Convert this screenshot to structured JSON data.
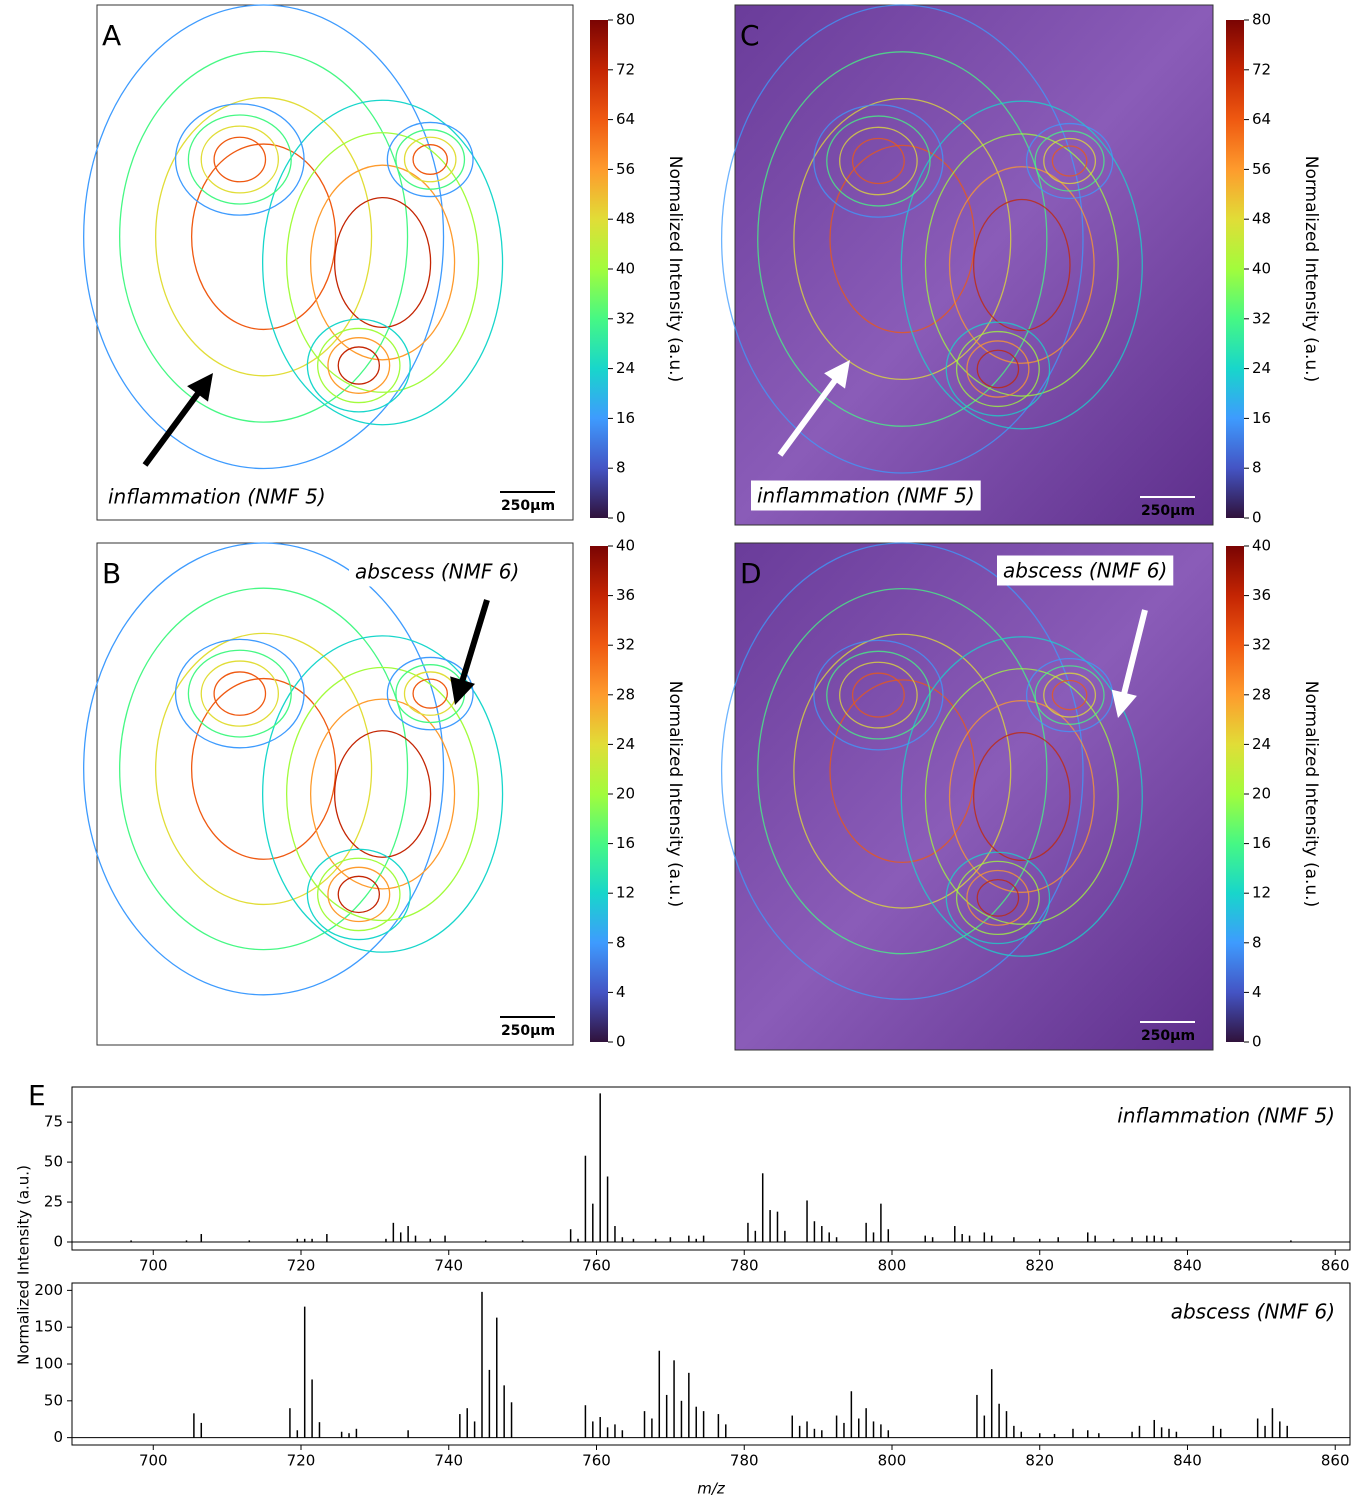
{
  "chart_data": [
    {
      "type": "contour",
      "label": "A",
      "annotation": "inflammation (NMF 5)",
      "scale_bar": "250µm",
      "overlay": false,
      "colorbar_label": "Normalized Intensity (a.u.)",
      "ylim": [
        0,
        80
      ],
      "yticks": [
        0,
        8,
        16,
        24,
        32,
        40,
        48,
        56,
        64,
        72,
        80
      ]
    },
    {
      "type": "contour",
      "label": "B",
      "annotation": "abscess (NMF 6)",
      "scale_bar": "250µm",
      "overlay": false,
      "colorbar_label": "Normalized Intensity (a.u.)",
      "ylim": [
        0,
        40
      ],
      "yticks": [
        0,
        4,
        8,
        12,
        16,
        20,
        24,
        28,
        32,
        36,
        40
      ]
    },
    {
      "type": "contour",
      "label": "C",
      "annotation": "inflammation (NMF 5)",
      "scale_bar": "250µm",
      "overlay": true,
      "colorbar_label": "Normalized Intensity (a.u.)",
      "ylim": [
        0,
        80
      ],
      "yticks": [
        0,
        8,
        16,
        24,
        32,
        40,
        48,
        56,
        64,
        72,
        80
      ]
    },
    {
      "type": "contour",
      "label": "D",
      "annotation": "abscess (NMF 6)",
      "scale_bar": "250µm",
      "overlay": true,
      "colorbar_label": "Normalized Intensity (a.u.)",
      "ylim": [
        0,
        40
      ],
      "yticks": [
        0,
        4,
        8,
        12,
        16,
        20,
        24,
        28,
        32,
        36,
        40
      ]
    },
    {
      "type": "stem",
      "label": "E",
      "title": "inflammation (NMF 5)",
      "ylabel": "Normalized Intensity (a.u.)",
      "color": "#000000",
      "xlim": [
        689,
        862
      ],
      "xticks": [
        700,
        720,
        740,
        760,
        780,
        800,
        820,
        840,
        860
      ],
      "ylim": [
        -5,
        97
      ],
      "yticks": [
        0,
        25,
        50,
        75
      ],
      "x": [
        697,
        704.5,
        706.5,
        713,
        719.5,
        720.5,
        721.5,
        723.5,
        731.5,
        732.5,
        733.5,
        734.5,
        735.5,
        737.5,
        739.5,
        745,
        750,
        756.5,
        757.5,
        758.5,
        759.5,
        760.5,
        761.5,
        762.5,
        763.5,
        765,
        768,
        770,
        772.5,
        773.5,
        774.5,
        780.5,
        781.5,
        782.5,
        783.5,
        784.5,
        785.5,
        788.5,
        789.5,
        790.5,
        791.5,
        792.5,
        796.5,
        797.5,
        798.5,
        799.5,
        804.5,
        805.5,
        808.5,
        809.5,
        810.5,
        812.5,
        813.5,
        816.5,
        820,
        822.5,
        826.5,
        827.5,
        830,
        832.5,
        834.5,
        835.5,
        836.5,
        838.5,
        854
      ],
      "values": [
        1,
        1,
        5,
        1,
        2,
        2,
        2,
        5,
        2,
        12,
        6,
        10,
        4,
        2,
        4,
        1,
        1,
        8,
        2,
        54,
        24,
        93,
        41,
        10,
        3,
        2,
        2,
        3,
        4,
        2,
        4,
        12,
        7,
        43,
        20,
        19,
        7,
        26,
        13,
        10,
        6,
        3,
        12,
        6,
        24,
        8,
        4,
        3,
        10,
        5,
        4,
        6,
        4,
        3,
        2,
        3,
        6,
        4,
        2,
        3,
        4,
        4,
        3,
        3,
        1
      ]
    },
    {
      "type": "stem",
      "title": "abscess (NMF 6)",
      "xlabel": "m/z",
      "color": "#000000",
      "xlim": [
        689,
        862
      ],
      "xticks": [
        700,
        720,
        740,
        760,
        780,
        800,
        820,
        840,
        860
      ],
      "ylim": [
        -10,
        210
      ],
      "yticks": [
        0,
        50,
        100,
        150,
        200
      ],
      "x": [
        705.5,
        706.5,
        718.5,
        719.5,
        720.5,
        721.5,
        722.5,
        725.5,
        726.5,
        727.5,
        734.5,
        741.5,
        742.5,
        743.5,
        744.5,
        745.5,
        746.5,
        747.5,
        748.5,
        758.5,
        759.5,
        760.5,
        761.5,
        762.5,
        763.5,
        766.5,
        767.5,
        768.5,
        769.5,
        770.5,
        771.5,
        772.5,
        773.5,
        774.5,
        776.5,
        777.5,
        786.5,
        787.5,
        788.5,
        789.5,
        790.5,
        792.5,
        793.5,
        794.5,
        795.5,
        796.5,
        797.5,
        798.5,
        799.5,
        811.5,
        812.5,
        813.5,
        814.5,
        815.5,
        816.5,
        817.5,
        820,
        822,
        824.5,
        826.5,
        828,
        832.5,
        833.5,
        835.5,
        836.5,
        837.5,
        838.5,
        843.5,
        844.5,
        849.5,
        850.5,
        851.5,
        852.5,
        853.5
      ],
      "values": [
        33,
        20,
        40,
        10,
        178,
        79,
        21,
        8,
        6,
        12,
        10,
        32,
        40,
        22,
        198,
        92,
        163,
        71,
        48,
        44,
        22,
        28,
        14,
        18,
        10,
        36,
        26,
        118,
        58,
        105,
        50,
        88,
        42,
        36,
        32,
        18,
        30,
        16,
        22,
        12,
        10,
        30,
        20,
        63,
        26,
        40,
        22,
        18,
        10,
        58,
        30,
        93,
        46,
        36,
        16,
        8,
        6,
        5,
        12,
        10,
        6,
        8,
        16,
        24,
        14,
        12,
        8,
        16,
        12,
        26,
        16,
        40,
        22,
        16
      ]
    }
  ],
  "colormap": [
    "#30123b",
    "#4454c4",
    "#3e9bfe",
    "#18d6cb",
    "#46f884",
    "#a2fc3c",
    "#e1dd37",
    "#fe9b2d",
    "#ef5911",
    "#c42503",
    "#7a0403"
  ]
}
